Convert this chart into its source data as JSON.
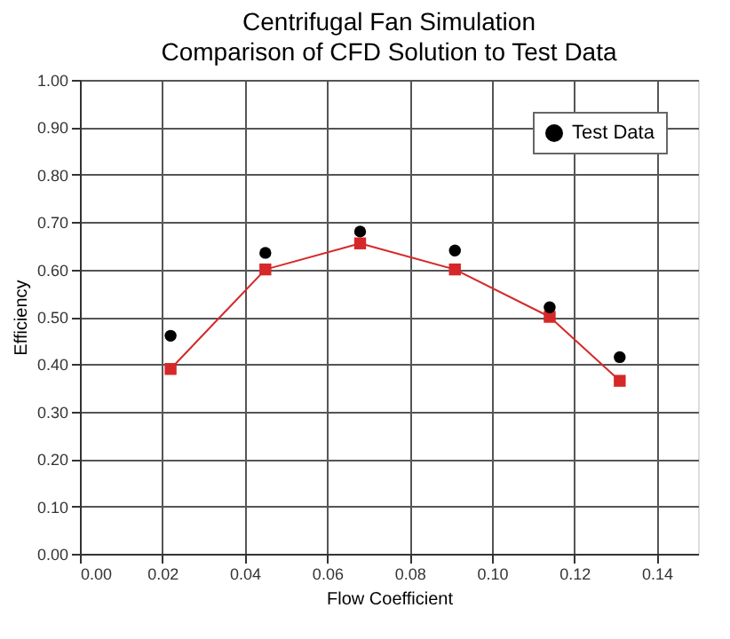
{
  "chart_data": {
    "type": "line",
    "title": "Centrifugal Fan Simulation",
    "subtitle": "Comparison of CFD Solution to Test Data",
    "xlabel": "Flow Coefficient",
    "ylabel": "Efficiency",
    "x": [
      0.022,
      0.045,
      0.068,
      0.091,
      0.114,
      0.131
    ],
    "series": [
      {
        "type": "line",
        "color": "#d62828",
        "marker": "square",
        "values": [
          0.39,
          0.6,
          0.655,
          0.6,
          0.5,
          0.365
        ]
      },
      {
        "type": "scatter",
        "name": "Test Data",
        "color": "#000000",
        "marker": "circle",
        "values": [
          0.46,
          0.635,
          0.68,
          0.64,
          0.52,
          0.415
        ]
      }
    ],
    "xlim": [
      0,
      0.15
    ],
    "xticks": [
      {
        "value": 0,
        "label": "0.00"
      },
      {
        "value": 0.02,
        "label": "0.02"
      },
      {
        "value": 0.04,
        "label": "0.04"
      },
      {
        "value": 0.06,
        "label": "0.06"
      },
      {
        "value": 0.08,
        "label": "0.08"
      },
      {
        "value": 0.1,
        "label": "0.10"
      },
      {
        "value": 0.12,
        "label": "0.12"
      },
      {
        "value": 0.14,
        "label": "0.14"
      }
    ],
    "ylim": [
      0,
      1
    ],
    "yticks": [
      {
        "value": 0,
        "label": "0.00"
      },
      {
        "value": 0.1,
        "label": "0.10"
      },
      {
        "value": 0.2,
        "label": "0.20"
      },
      {
        "value": 0.3,
        "label": "0.30"
      },
      {
        "value": 0.4,
        "label": "0.40"
      },
      {
        "value": 0.5,
        "label": "0.50"
      },
      {
        "value": 0.6,
        "label": "0.60"
      },
      {
        "value": 0.7,
        "label": "0.70"
      },
      {
        "value": 0.8,
        "label": "0.80"
      },
      {
        "value": 0.9,
        "label": "0.90"
      },
      {
        "value": 1,
        "label": "1.00"
      }
    ],
    "grid": true,
    "legend": "top right"
  }
}
